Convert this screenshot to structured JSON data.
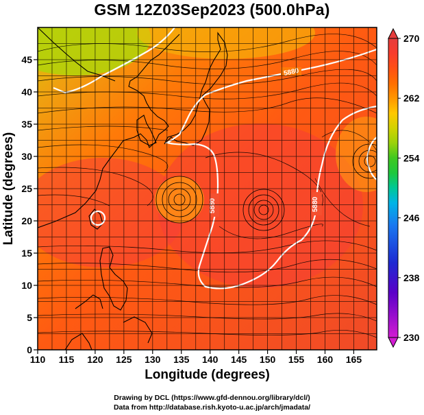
{
  "title": "GSM 12Z03Sep2023 (500.0hPa)",
  "credits": [
    "Drawing by DCL (https://www.gfd-dennou.org/library/dcl/)",
    "Data from http://database.rish.kyoto-u.ac.jp/arch/jmadata/"
  ],
  "chart_data": {
    "type": "heatmap",
    "xlabel": "Longitude (degrees)",
    "ylabel": "Latitude  (degrees)",
    "xlim": [
      110,
      169
    ],
    "ylim": [
      0,
      50
    ],
    "xticks": [
      110,
      115,
      120,
      125,
      130,
      135,
      140,
      145,
      150,
      155,
      160,
      165
    ],
    "yticks": [
      0,
      5,
      10,
      15,
      20,
      25,
      30,
      35,
      40,
      45
    ],
    "grid": true,
    "colorbar": {
      "range": [
        230,
        270
      ],
      "ticks": [
        230,
        238,
        246,
        254,
        262,
        270
      ],
      "colors": [
        {
          "value": 230,
          "color": "#d21cd2"
        },
        {
          "value": 236,
          "color": "#5a00c8"
        },
        {
          "value": 240,
          "color": "#1e2ad2"
        },
        {
          "value": 245,
          "color": "#1a78f0"
        },
        {
          "value": 248,
          "color": "#00b4e6"
        },
        {
          "value": 250,
          "color": "#00c896"
        },
        {
          "value": 252,
          "color": "#1ec83c"
        },
        {
          "value": 254,
          "color": "#40c820"
        },
        {
          "value": 256,
          "color": "#9ad20a"
        },
        {
          "value": 258,
          "color": "#d2d200"
        },
        {
          "value": 260,
          "color": "#ffc800"
        },
        {
          "value": 262,
          "color": "#ff9600"
        },
        {
          "value": 264,
          "color": "#ff6e00"
        },
        {
          "value": 266,
          "color": "#ff5014"
        },
        {
          "value": 268,
          "color": "#f83c2c"
        },
        {
          "value": 270,
          "color": "#e63c3c"
        }
      ]
    },
    "contour_labels": [
      "5880",
      "5880",
      "5880"
    ],
    "vortices": [
      {
        "lon": 135,
        "lat": 25.5
      },
      {
        "lon": 150,
        "lat": 24
      },
      {
        "lon": 121,
        "lat": 22
      }
    ]
  }
}
